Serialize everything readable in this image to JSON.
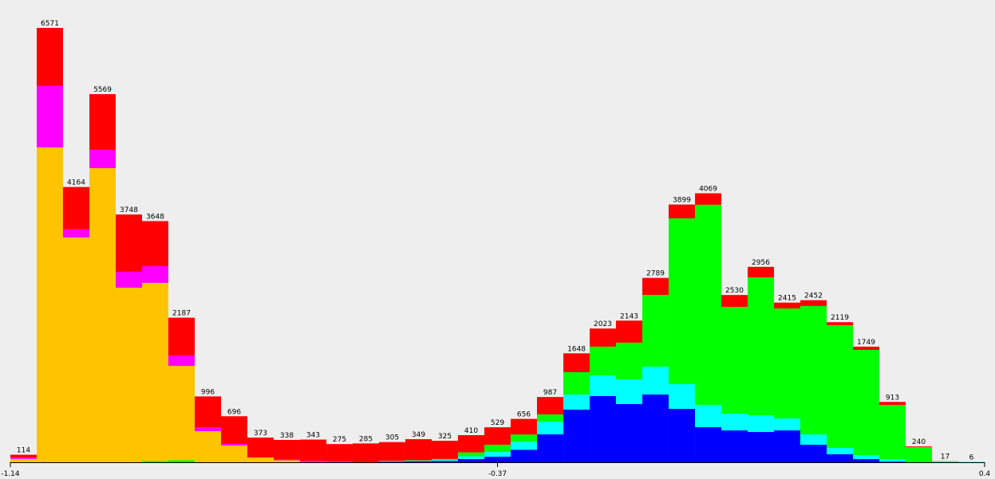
{
  "chart_data": {
    "type": "histogram",
    "bins": [
      -1.14,
      -1.0984,
      -1.0568,
      -1.0151,
      -0.9735,
      -0.9319,
      -0.8903,
      -0.8486,
      -0.807,
      -0.7654,
      -0.7238,
      -0.6822,
      -0.6405,
      -0.5989,
      -0.5573,
      -0.5157,
      -0.4741,
      -0.4324,
      -0.3908,
      -0.3492,
      -0.3076,
      -0.2659,
      -0.2243,
      -0.1827,
      -0.1411,
      -0.0995,
      -0.0578,
      -0.0162,
      0.0254,
      0.067,
      0.1086,
      0.1503,
      0.1919,
      0.2335,
      0.2751,
      0.3168,
      0.3584,
      0.4
    ],
    "totals": [
      114,
      6571,
      4164,
      5569,
      3748,
      3648,
      2187,
      996,
      696,
      373,
      338,
      343,
      275,
      285,
      305,
      349,
      325,
      410,
      529,
      656,
      987,
      1648,
      2023,
      2143,
      2789,
      3899,
      4069,
      2530,
      2956,
      2415,
      2452,
      2119,
      1749,
      913,
      240,
      17,
      6
    ],
    "series": [
      {
        "color": "#0000ff",
        "values": [
          0,
          0,
          0,
          0,
          0,
          0,
          0,
          0,
          0,
          0,
          0,
          0,
          0,
          0,
          10,
          15,
          20,
          50,
          85,
          190,
          422,
          796,
          1001,
          880,
          1025,
          808,
          531,
          482,
          458,
          482,
          265,
          121,
          48,
          10,
          0,
          0,
          0
        ]
      },
      {
        "color": "#00ffff",
        "values": [
          0,
          0,
          0,
          0,
          0,
          0,
          0,
          0,
          0,
          0,
          0,
          0,
          0,
          0,
          10,
          10,
          15,
          40,
          70,
          120,
          193,
          229,
          314,
          374,
          422,
          374,
          338,
          253,
          253,
          181,
          157,
          96,
          60,
          36,
          0,
          10,
          6
        ]
      },
      {
        "color": "#00ff00",
        "values": [
          0,
          0,
          0,
          0,
          0,
          20,
          30,
          0,
          0,
          0,
          0,
          0,
          0,
          0,
          0,
          5,
          15,
          60,
          110,
          110,
          109,
          338,
          434,
          555,
          1085,
          2508,
          3027,
          1616,
          2086,
          1664,
          1942,
          1857,
          1592,
          820,
          230,
          7,
          0
        ]
      },
      {
        "color": "#ffc400",
        "values": [
          50,
          4763,
          3401,
          4450,
          2641,
          2694,
          1429,
          470,
          253,
          72,
          30,
          0,
          0,
          0,
          0,
          0,
          0,
          0,
          0,
          0,
          0,
          0,
          0,
          0,
          0,
          0,
          0,
          0,
          0,
          0,
          0,
          0,
          0,
          0,
          0,
          0,
          0
        ]
      },
      {
        "color": "#ff00ff",
        "values": [
          20,
          929,
          121,
          277,
          241,
          253,
          157,
          60,
          25,
          0,
          10,
          20,
          10,
          0,
          0,
          0,
          0,
          0,
          0,
          0,
          0,
          0,
          0,
          0,
          0,
          0,
          0,
          0,
          0,
          0,
          0,
          0,
          0,
          0,
          0,
          0,
          0
        ]
      },
      {
        "color": "#ff0000",
        "values": [
          44,
          879,
          642,
          842,
          866,
          681,
          571,
          466,
          418,
          301,
          298,
          323,
          265,
          285,
          285,
          319,
          275,
          260,
          264,
          236,
          263,
          285,
          274,
          334,
          257,
          209,
          173,
          179,
          159,
          88,
          88,
          45,
          49,
          47,
          10,
          0,
          0
        ]
      }
    ],
    "xlim": [
      -1.14,
      0.4
    ],
    "xticks": [
      -1.14,
      -0.37,
      0.4
    ],
    "ylim": [
      0,
      6571
    ]
  }
}
